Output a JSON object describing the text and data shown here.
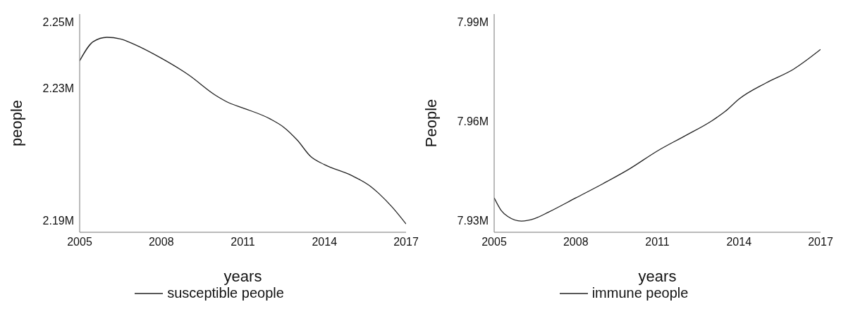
{
  "chart_data": [
    {
      "type": "line",
      "xlabel": "years",
      "ylabel": "people",
      "legend": "bottom",
      "grid": false,
      "marker": "none",
      "line_style": "solid",
      "x": [
        2005,
        2005.5,
        2006,
        2006.5,
        2007,
        2008,
        2009,
        2010,
        2010.5,
        2011,
        2012,
        2012.5,
        2013,
        2013.5,
        2014,
        2015,
        2015.7,
        2016,
        2016.5,
        2017
      ],
      "series": [
        {
          "name": "susceptible people",
          "color": "#222222",
          "values": [
            2.2382,
            2.244,
            2.2453,
            2.2448,
            2.2432,
            2.239,
            2.234,
            2.2278,
            2.2255,
            2.224,
            2.2207,
            2.2182,
            2.2143,
            2.2093,
            2.2069,
            2.2036,
            2.2003,
            2.1982,
            2.194,
            2.189
          ]
        }
      ],
      "xlim": [
        2005,
        2017
      ],
      "xticks": [
        2005,
        2008,
        2011,
        2014,
        2017
      ],
      "ylim": [
        2.1865,
        2.2523
      ],
      "yticks": [
        {
          "value": 2.19,
          "label": "2.19M"
        },
        {
          "value": 2.23,
          "label": "2.23M"
        },
        {
          "value": 2.25,
          "label": "2.25M"
        }
      ]
    },
    {
      "type": "line",
      "xlabel": "years",
      "ylabel": "People",
      "legend": "bottom",
      "grid": false,
      "marker": "none",
      "line_style": "solid",
      "x": [
        2005,
        2005.25,
        2005.5,
        2006,
        2006.5,
        2007,
        2008,
        2009,
        2010,
        2011,
        2012,
        2013,
        2013.5,
        2014,
        2015,
        2016,
        2017
      ],
      "series": [
        {
          "name": "immune people",
          "color": "#222222",
          "values": [
            7.9369,
            7.9332,
            7.9313,
            7.9299,
            7.9307,
            7.9326,
            7.9369,
            7.9412,
            7.9458,
            7.9511,
            7.9556,
            7.9602,
            7.9631,
            7.9668,
            7.9717,
            7.9758,
            7.9818
          ]
        }
      ],
      "xlim": [
        2005,
        2017
      ],
      "xticks": [
        2005,
        2008,
        2011,
        2014,
        2017
      ],
      "ylim": [
        7.9265,
        7.9925
      ],
      "yticks": [
        {
          "value": 7.93,
          "label": "7.93M"
        },
        {
          "value": 7.96,
          "label": "7.96M"
        },
        {
          "value": 7.99,
          "label": "7.99M"
        }
      ]
    }
  ]
}
